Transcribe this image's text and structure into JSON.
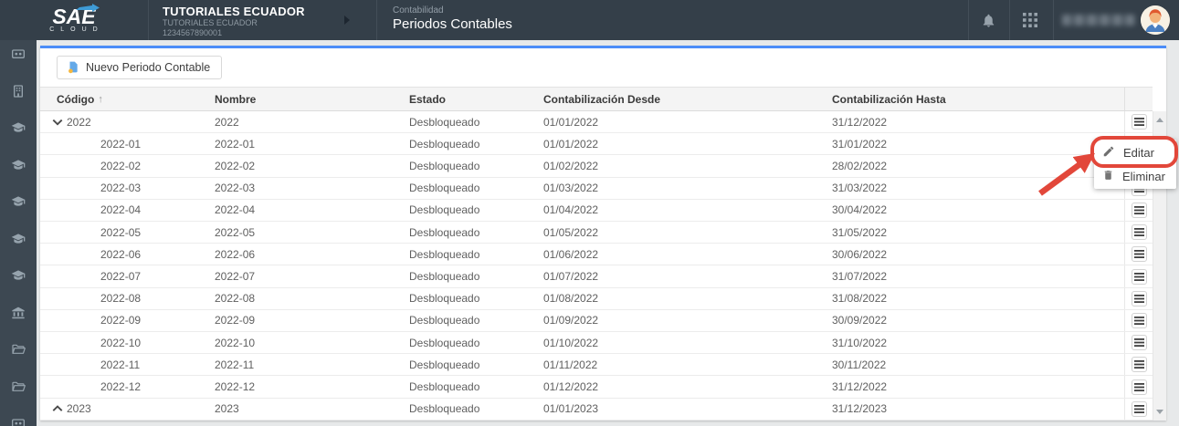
{
  "header": {
    "logo": {
      "brand": "SAE",
      "sub": "CLOUD"
    },
    "company": {
      "name": "TUTORIALES ECUADOR",
      "alt_name": "TUTORIALES ECUADOR",
      "tax_id": "1234567890001"
    },
    "breadcrumb": {
      "section": "Contabilidad",
      "page": "Periodos Contables"
    }
  },
  "sidebar": {
    "icons": [
      "cards",
      "building",
      "graduation-cap",
      "graduation-cap",
      "graduation-cap",
      "graduation-cap",
      "graduation-cap",
      "bank",
      "folder-open",
      "folder-open",
      "cards"
    ]
  },
  "toolbar": {
    "new_button_label": "Nuevo Periodo Contable"
  },
  "table": {
    "columns": [
      "Código",
      "Nombre",
      "Estado",
      "Contabilización Desde",
      "Contabilización Hasta"
    ],
    "sort": {
      "column": "Código",
      "direction": "asc",
      "glyph": "↑"
    },
    "rows": [
      {
        "codigo": "2022",
        "nombre": "2022",
        "estado": "Desbloqueado",
        "desde": "01/01/2022",
        "hasta": "31/12/2022",
        "level": 0,
        "expand": "expanded"
      },
      {
        "codigo": "2022-01",
        "nombre": "2022-01",
        "estado": "Desbloqueado",
        "desde": "01/01/2022",
        "hasta": "31/01/2022",
        "level": 1,
        "expand": null
      },
      {
        "codigo": "2022-02",
        "nombre": "2022-02",
        "estado": "Desbloqueado",
        "desde": "01/02/2022",
        "hasta": "28/02/2022",
        "level": 1,
        "expand": null
      },
      {
        "codigo": "2022-03",
        "nombre": "2022-03",
        "estado": "Desbloqueado",
        "desde": "01/03/2022",
        "hasta": "31/03/2022",
        "level": 1,
        "expand": null
      },
      {
        "codigo": "2022-04",
        "nombre": "2022-04",
        "estado": "Desbloqueado",
        "desde": "01/04/2022",
        "hasta": "30/04/2022",
        "level": 1,
        "expand": null
      },
      {
        "codigo": "2022-05",
        "nombre": "2022-05",
        "estado": "Desbloqueado",
        "desde": "01/05/2022",
        "hasta": "31/05/2022",
        "level": 1,
        "expand": null
      },
      {
        "codigo": "2022-06",
        "nombre": "2022-06",
        "estado": "Desbloqueado",
        "desde": "01/06/2022",
        "hasta": "30/06/2022",
        "level": 1,
        "expand": null
      },
      {
        "codigo": "2022-07",
        "nombre": "2022-07",
        "estado": "Desbloqueado",
        "desde": "01/07/2022",
        "hasta": "31/07/2022",
        "level": 1,
        "expand": null
      },
      {
        "codigo": "2022-08",
        "nombre": "2022-08",
        "estado": "Desbloqueado",
        "desde": "01/08/2022",
        "hasta": "31/08/2022",
        "level": 1,
        "expand": null
      },
      {
        "codigo": "2022-09",
        "nombre": "2022-09",
        "estado": "Desbloqueado",
        "desde": "01/09/2022",
        "hasta": "30/09/2022",
        "level": 1,
        "expand": null
      },
      {
        "codigo": "2022-10",
        "nombre": "2022-10",
        "estado": "Desbloqueado",
        "desde": "01/10/2022",
        "hasta": "31/10/2022",
        "level": 1,
        "expand": null
      },
      {
        "codigo": "2022-11",
        "nombre": "2022-11",
        "estado": "Desbloqueado",
        "desde": "01/11/2022",
        "hasta": "30/11/2022",
        "level": 1,
        "expand": null
      },
      {
        "codigo": "2022-12",
        "nombre": "2022-12",
        "estado": "Desbloqueado",
        "desde": "01/12/2022",
        "hasta": "31/12/2022",
        "level": 1,
        "expand": null
      },
      {
        "codigo": "2023",
        "nombre": "2023",
        "estado": "Desbloqueado",
        "desde": "01/01/2023",
        "hasta": "31/12/2023",
        "level": 0,
        "expand": "collapsed"
      }
    ]
  },
  "context_menu": {
    "items": [
      {
        "icon": "pencil",
        "label": "Editar"
      },
      {
        "icon": "trash",
        "label": "Eliminar"
      }
    ]
  },
  "annotation": {
    "highlight_target": "Editar",
    "shape": "rounded-rect-plus-arrow",
    "color": "#e2473a"
  },
  "colors": {
    "header_bg": "#343f49",
    "sidebar_bg": "#3d4852",
    "accent_line": "#4b8df8",
    "annotation_red": "#e2473a",
    "doc_icon_blue": "#64a9e8",
    "doc_icon_yellow": "#f5b73e"
  }
}
